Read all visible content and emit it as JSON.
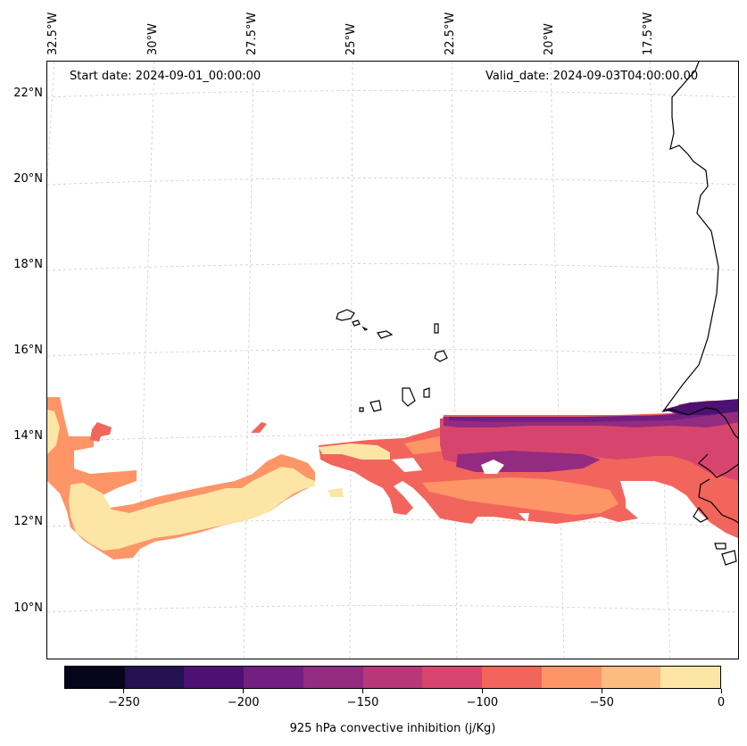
{
  "map": {
    "variable": "925 hPa convective inhibition (j/Kg)",
    "start_date": "Start date: 2024-09-01_00:00:00",
    "valid_date": "Valid_date: 2024-09-03T04:00:00.00",
    "lon_labels": [
      "32.5°W",
      "30°W",
      "27.5°W",
      "25°W",
      "22.5°W",
      "20°W",
      "17.5°W"
    ],
    "lat_labels": [
      "22°N",
      "20°N",
      "18°N",
      "16°N",
      "14°N",
      "12°N",
      "10°N"
    ],
    "region": "Eastern tropical Atlantic off West Africa (Cape Verde Islands, Senegal coast)"
  },
  "colorbar": {
    "ticks": [
      "−250",
      "−200",
      "−150",
      "−100",
      "−50",
      "0"
    ],
    "levels": [
      -275,
      -250,
      -225,
      -200,
      -175,
      -150,
      -125,
      -100,
      -75,
      -50,
      -25,
      0
    ],
    "colors": [
      "#07051c",
      "#231151",
      "#4d1173",
      "#721f81",
      "#932b80",
      "#b73779",
      "#d8456c",
      "#f2655c",
      "#fd9567",
      "#febb81",
      "#fde5a5"
    ]
  }
}
